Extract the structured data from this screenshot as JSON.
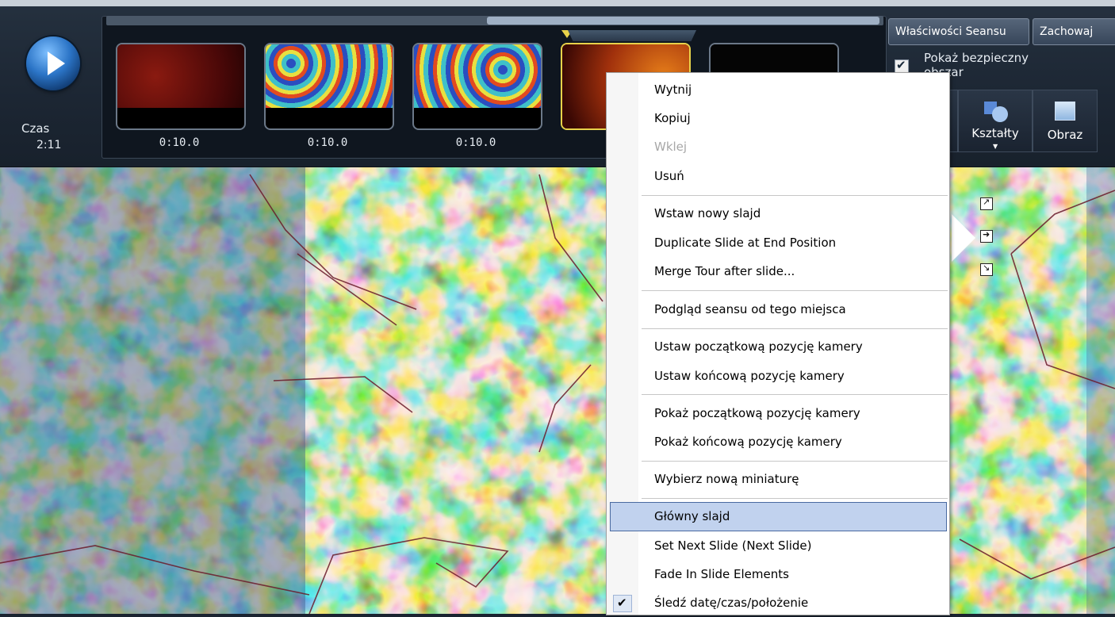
{
  "player": {
    "time_label": "Czas",
    "time_value": "2:11"
  },
  "slides": [
    {
      "duration": "0:10.0",
      "thumb": "dark-red"
    },
    {
      "duration": "0:10.0",
      "thumb": "cmb-map"
    },
    {
      "duration": "0:10.0",
      "thumb": "cmb-map"
    },
    {
      "duration": "",
      "thumb": "red-orange",
      "selected": true
    },
    {
      "duration": "",
      "thumb": "black"
    }
  ],
  "top_buttons": {
    "properties": "Właściwości Seansu",
    "save": "Zachowaj"
  },
  "safe_area": {
    "label": "Pokaż bezpieczny obszar",
    "checked": true
  },
  "tools": {
    "shapes": "Kształty",
    "image": "Obraz"
  },
  "context_menu": {
    "items": [
      {
        "label": "Wytnij"
      },
      {
        "label": "Kopiuj"
      },
      {
        "label": "Wklej",
        "disabled": true
      },
      {
        "label": "Usuń"
      },
      {
        "label": "Wstaw nowy slajd"
      },
      {
        "label": "Duplicate Slide at End Position"
      },
      {
        "label": "Merge Tour after slide..."
      },
      {
        "label": "Podgląd seansu od tego miejsca"
      },
      {
        "label": "Ustaw początkową pozycję kamery"
      },
      {
        "label": "Ustaw końcową pozycję kamery"
      },
      {
        "label": "Pokaż początkową pozycję kamery"
      },
      {
        "label": "Pokaż końcową pozycję kamery"
      },
      {
        "label": "Wybierz nową miniaturę"
      },
      {
        "label": "Główny slajd",
        "highlighted": true
      },
      {
        "label": "Set Next Slide (Next Slide)"
      },
      {
        "label": "Fade In Slide Elements"
      },
      {
        "label": "Śledź datę/czas/położenie",
        "checked": true
      }
    ]
  },
  "colors": {
    "toolbar_bg": "#1c2633",
    "selection_yellow": "#e8d24a",
    "menu_highlight": "#c1d2ee"
  }
}
